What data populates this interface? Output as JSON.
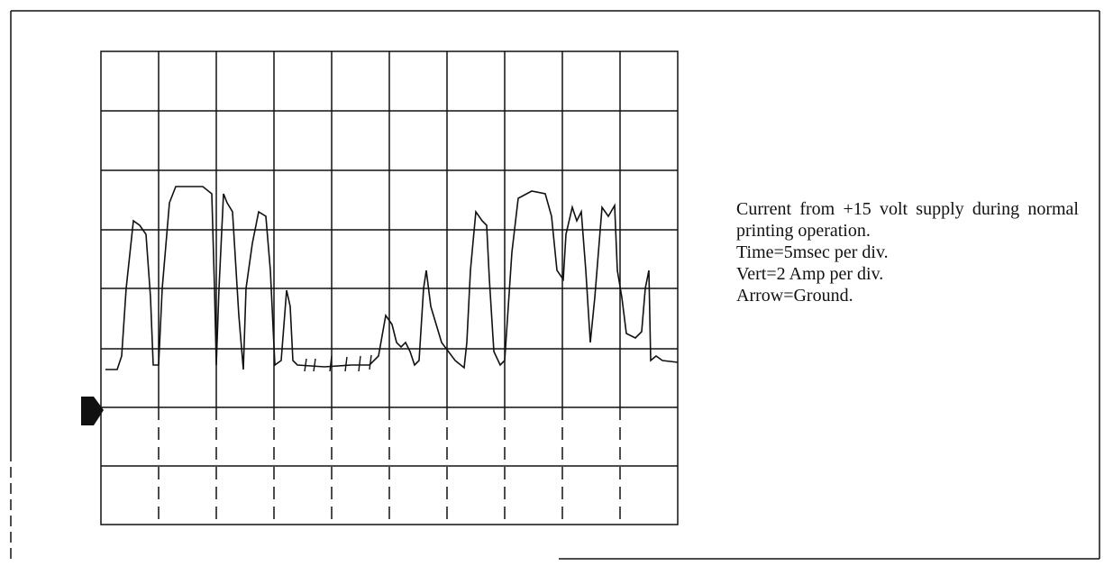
{
  "caption": "Current from +15 volt supply during normal printing operation.",
  "notes": [
    "Time=5msec per div.",
    "Vert=2 Amp per div.",
    "Arrow=Ground."
  ]
}
